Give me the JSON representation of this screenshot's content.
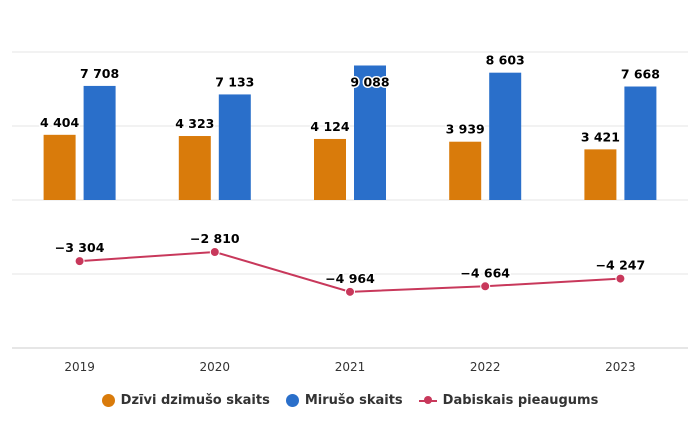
{
  "chart_data": {
    "type": "bar",
    "categories": [
      "2019",
      "2020",
      "2021",
      "2022",
      "2023"
    ],
    "series": [
      {
        "name": "Dzīvi dzimušo skaits",
        "type": "bar",
        "color": "#d97b0b",
        "values": [
          4404,
          4323,
          4124,
          3939,
          3421
        ],
        "labels": [
          "4 404",
          "4 323",
          "4 124",
          "3 939",
          "3 421"
        ]
      },
      {
        "name": "Mirušo skaits",
        "type": "bar",
        "color": "#2a6fca",
        "values": [
          7708,
          7133,
          9088,
          8603,
          7668
        ],
        "labels": [
          "7 708",
          "7 133",
          "9 088",
          "8 603",
          "7 668"
        ]
      },
      {
        "name": "Dabiskais pieaugums",
        "type": "line",
        "color": "#c8385b",
        "values": [
          -3304,
          -2810,
          -4964,
          -4664,
          -4247
        ],
        "labels": [
          "−3 304",
          "−2 810",
          "−4 964",
          "−4 664",
          "−4 247"
        ]
      }
    ],
    "grid": true,
    "legend": "bottom-center",
    "title": "",
    "xlabel": "",
    "ylabel": ""
  }
}
